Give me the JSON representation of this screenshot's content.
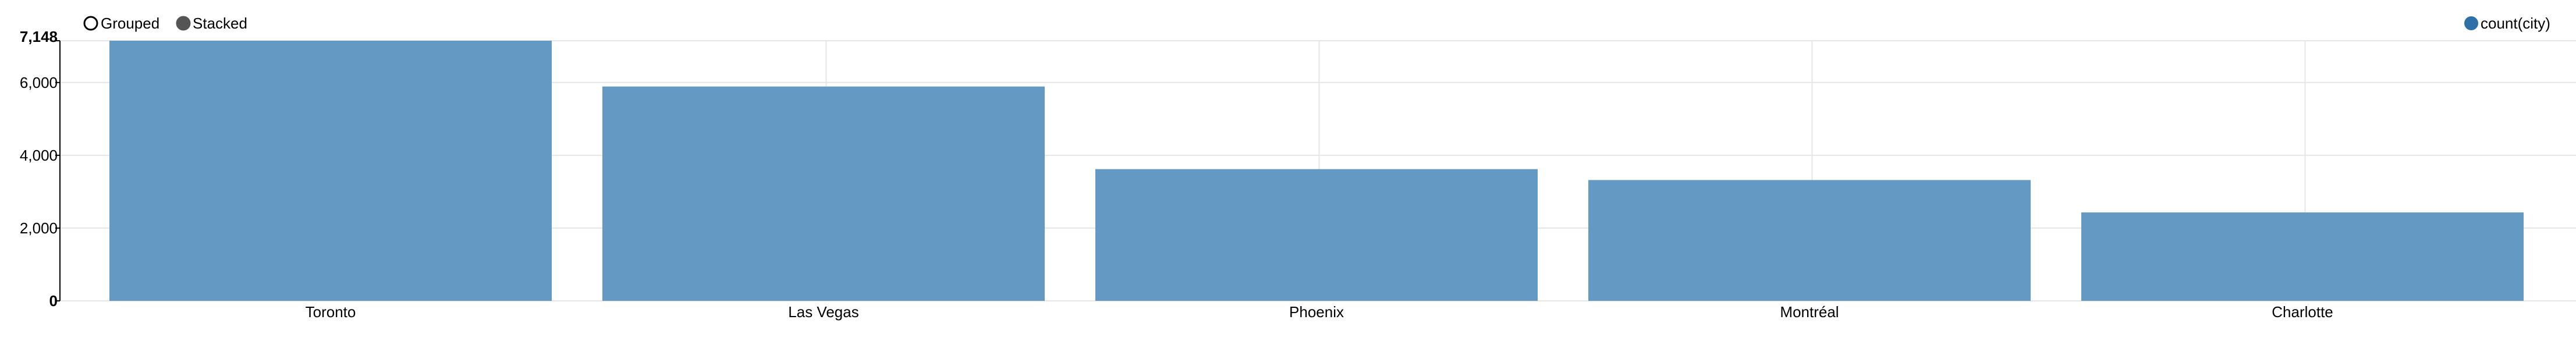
{
  "controls": {
    "grouped_label": "Grouped",
    "stacked_label": "Stacked",
    "selected": "grouped"
  },
  "chart_data": {
    "type": "bar",
    "categories": [
      "Toronto",
      "Las Vegas",
      "Phoenix",
      "Montréal",
      "Charlotte"
    ],
    "series": [
      {
        "name": "count(city)",
        "values": [
          7148,
          5890,
          3620,
          3320,
          2430
        ],
        "color": "#6399c3"
      }
    ],
    "ylim": [
      0,
      7148
    ],
    "yticks": [
      0,
      2000,
      4000,
      6000,
      7148
    ],
    "ytick_labels": [
      "0",
      "2,000",
      "4,000",
      "6,000",
      "7,148"
    ],
    "grid": true,
    "legend_position": "top-right",
    "legend_color": "#2f6fa8"
  }
}
